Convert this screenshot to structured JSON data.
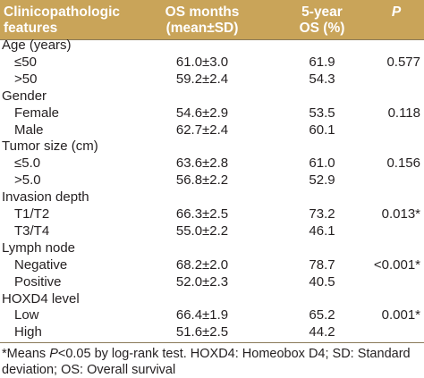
{
  "header": {
    "columns": [
      [
        "Clinicopathologic",
        "features"
      ],
      [
        "OS months",
        "(mean±SD)"
      ],
      [
        "5-year",
        "OS (%)"
      ],
      [
        "P"
      ]
    ]
  },
  "groups": [
    {
      "label": "Age (years)",
      "p": "0.577",
      "rows": [
        [
          "≤50",
          "61.0±3.0",
          "61.9"
        ],
        [
          ">50",
          "59.2±2.4",
          "54.3"
        ]
      ]
    },
    {
      "label": "Gender",
      "p": "0.118",
      "rows": [
        [
          "Female",
          "54.6±2.9",
          "53.5"
        ],
        [
          "Male",
          "62.7±2.4",
          "60.1"
        ]
      ]
    },
    {
      "label": "Tumor size (cm)",
      "p": "0.156",
      "rows": [
        [
          "≤5.0",
          "63.6±2.8",
          "61.0"
        ],
        [
          ">5.0",
          "56.8±2.2",
          "52.9"
        ]
      ]
    },
    {
      "label": "Invasion depth",
      "p": "0.013*",
      "rows": [
        [
          "T1/T2",
          "66.3±2.5",
          "73.2"
        ],
        [
          "T3/T4",
          "55.0±2.2",
          "46.1"
        ]
      ]
    },
    {
      "label": "Lymph node",
      "p": "<0.001*",
      "rows": [
        [
          "Negative",
          "68.2±2.0",
          "78.7"
        ],
        [
          "Positive",
          "52.0±2.3",
          "40.5"
        ]
      ]
    },
    {
      "label": "HOXD4 level",
      "p": "0.001*",
      "rows": [
        [
          "Low",
          "66.4±1.9",
          "65.2"
        ],
        [
          "High",
          "51.6±2.5",
          "44.2"
        ]
      ]
    }
  ],
  "footnote": [
    "*Means ",
    "P",
    "<0.05 by log-rank test. HOXD4: Homeobox D4; SD: Standard deviation; OS: Overall survival"
  ]
}
